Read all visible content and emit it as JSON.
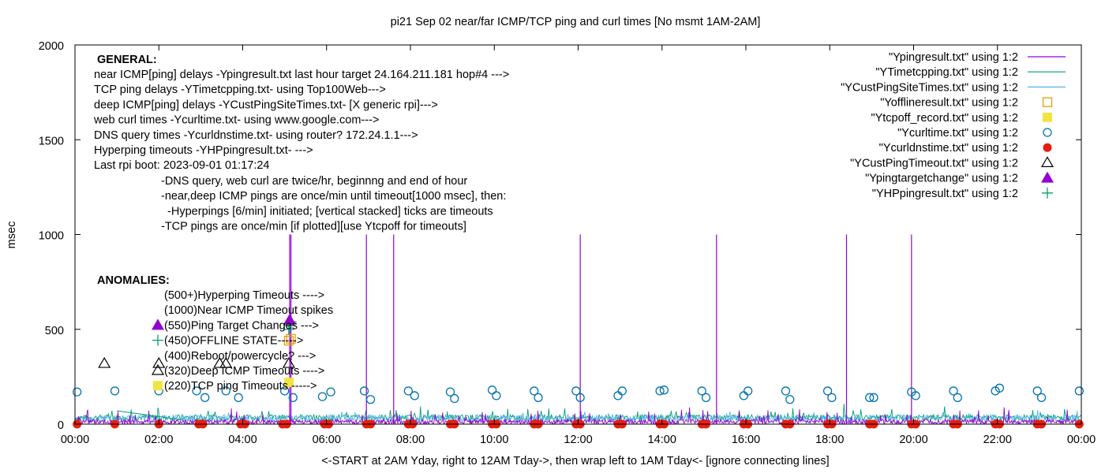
{
  "chart_data": {
    "type": "line",
    "title": "pi21 Sep 02  near/far ICMP/TCP ping and curl times [No msmt 1AM-2AM]",
    "xlabel": "<-START at 2AM Yday, right to 12AM Tday->, then wrap left to 1AM Tday<- [ignore connecting lines]",
    "ylabel": "msec",
    "ylim": [
      0,
      2000
    ],
    "xlim": [
      0,
      24
    ],
    "y_ticks": [
      "0",
      "500",
      "1000",
      "1500",
      "2000"
    ],
    "x_ticks": [
      "00:00",
      "02:00",
      "04:00",
      "06:00",
      "08:00",
      "10:00",
      "12:00",
      "14:00",
      "16:00",
      "18:00",
      "20:00",
      "22:00",
      "00:00"
    ],
    "legend_position": "top-right",
    "legend": [
      {
        "label": "\"Ypingresult.txt\" using 1:2",
        "style": "line",
        "color": "#9400d3"
      },
      {
        "label": "\"YTimetcpping.txt\" using 1:2",
        "style": "line",
        "color": "#009e73"
      },
      {
        "label": "\"YCustPingSiteTimes.txt\" using 1:2",
        "style": "line",
        "color": "#56b4e9"
      },
      {
        "label": "\"Yofflineresult.txt\" using 1:2",
        "style": "open-square",
        "color": "#e69f00"
      },
      {
        "label": "\"Ytcpoff_record.txt\" using 1:2",
        "style": "filled-square",
        "color": "#f0e442"
      },
      {
        "label": "\"Ycurltime.txt\" using 1:2",
        "style": "open-circle",
        "color": "#0072b2"
      },
      {
        "label": "\"Ycurldnstime.txt\" using 1:2",
        "style": "filled-circle",
        "color": "#e51e10"
      },
      {
        "label": "\"YCustPingTimeout.txt\" using 1:2",
        "style": "open-triangle",
        "color": "#000000"
      },
      {
        "label": "\"Ypingtargetchange\" using 1:2",
        "style": "filled-triangle",
        "color": "#9400d3"
      },
      {
        "label": "\"YHPpingresult.txt\" using 1:2",
        "style": "plus",
        "color": "#009e73"
      }
    ],
    "general_heading": "GENERAL:",
    "general_lines": [
      "near ICMP[ping] delays -Ypingresult.txt last hour target 24.164.211.181 hop#4 --->",
      "TCP ping delays -YTimetcpping.txt- using Top100Web--->",
      "deep ICMP[ping] delays -YCustPingSiteTimes.txt- [X generic rpi]--->",
      "web curl times -Ycurltime.txt- using www.google.com--->",
      "DNS query times -Ycurldnstime.txt- using router? 172.24.1.1--->",
      "Hyperping timeouts -YHPpingresult.txt- --->",
      "Last rpi boot: 2023-09-01 01:17:24"
    ],
    "notes": [
      "-DNS query, web curl are twice/hr, beginnng and end of hour",
      "-near,deep ICMP pings are once/min until timeout[1000 msec], then:",
      "  -Hyperpings [6/min] initiated; [vertical stacked] ticks are timeouts",
      "-TCP pings are once/min [if plotted][use Ytcpoff for timeouts]"
    ],
    "anomalies_heading": "ANOMALIES:",
    "anomalies": [
      {
        "text": "(500+)Hyperping Timeouts ---->",
        "marker": "none",
        "value": 500
      },
      {
        "text": "(1000)Near ICMP Timeout spikes",
        "marker": "none",
        "value": 1000
      },
      {
        "text": "(550)Ping Target Changes --->",
        "marker": "filled-triangle",
        "value": 550
      },
      {
        "text": "(450)OFFLINE STATE----->",
        "marker": "plus",
        "value": 450
      },
      {
        "text": "(400)Reboot/powercycle? --->",
        "marker": "none",
        "value": 400
      },
      {
        "text": "(320)Deep ICMP Timeouts ---->",
        "marker": "open-triangle",
        "value": 320
      },
      {
        "text": "(220)TCP ping Timeouts ----->",
        "marker": "filled-square",
        "value": 220
      }
    ],
    "ping_spikes_x": [
      5.12,
      5.15,
      6.95,
      7.6,
      12.05,
      15.3,
      18.4,
      19.95
    ],
    "ping_spike_y": 1000,
    "curl_points": {
      "x": [
        0.05,
        0.95,
        2.0,
        2.9,
        3.1,
        3.6,
        3.9,
        5.0,
        5.2,
        5.9,
        6.1,
        6.9,
        7.05,
        7.95,
        8.1,
        8.95,
        9.05,
        9.95,
        10.05,
        10.95,
        11.05,
        11.95,
        12.05,
        12.95,
        13.05,
        13.95,
        14.05,
        14.95,
        15.05,
        15.95,
        16.05,
        16.95,
        17.05,
        17.95,
        18.05,
        18.95,
        19.05,
        19.95,
        20.05,
        20.95,
        21.05,
        21.95,
        22.05,
        22.95,
        23.05,
        23.95
      ],
      "y": [
        170,
        175,
        175,
        175,
        140,
        175,
        140,
        175,
        140,
        145,
        170,
        175,
        130,
        175,
        150,
        170,
        135,
        180,
        150,
        175,
        140,
        175,
        140,
        150,
        175,
        175,
        180,
        175,
        140,
        150,
        175,
        175,
        130,
        175,
        140,
        140,
        140,
        170,
        150,
        175,
        140,
        175,
        190,
        175,
        140,
        175
      ]
    },
    "dns_points": {
      "x": [
        0.05,
        0.95,
        2.0,
        2.95,
        3.05,
        3.95,
        4.05,
        4.95,
        5.05,
        5.95,
        6.05,
        6.95,
        7.05,
        7.95,
        8.05,
        8.95,
        9.05,
        9.95,
        10.05,
        10.95,
        11.05,
        11.95,
        12.05,
        12.95,
        13.05,
        13.95,
        14.05,
        14.95,
        15.05,
        15.95,
        16.05,
        16.95,
        17.05,
        17.95,
        18.05,
        18.95,
        19.05,
        19.95,
        20.05,
        20.95,
        21.05,
        21.95,
        22.05,
        22.95,
        23.05,
        23.95
      ],
      "y": [
        0,
        0,
        0,
        0,
        0,
        0,
        0,
        0,
        0,
        0,
        0,
        0,
        0,
        0,
        0,
        0,
        0,
        0,
        0,
        0,
        0,
        0,
        0,
        0,
        0,
        0,
        0,
        0,
        0,
        0,
        0,
        0,
        0,
        0,
        0,
        0,
        0,
        0,
        0,
        0,
        0,
        0,
        0,
        0,
        0,
        0
      ]
    },
    "deep_timeout_points": {
      "x": [
        0.7,
        2.0,
        3.45,
        3.6,
        5.1
      ],
      "y": [
        320,
        320,
        320,
        320,
        320
      ]
    },
    "offline_points": {
      "x": [
        5.1,
        5.15
      ],
      "y": [
        440,
        450
      ]
    },
    "tcpoff_points": {
      "x": [
        5.1
      ],
      "y": [
        220
      ]
    },
    "hyperping_points": {
      "x": [
        5.1,
        5.12,
        5.15
      ],
      "y": [
        500,
        520,
        540
      ]
    },
    "target_change_points": {
      "x": [
        5.12
      ],
      "y": [
        550
      ]
    }
  }
}
